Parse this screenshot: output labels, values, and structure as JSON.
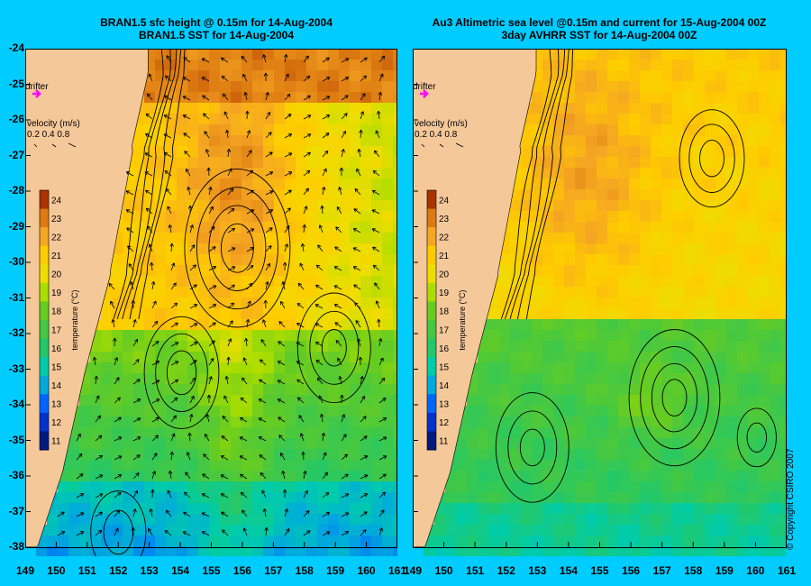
{
  "titles": {
    "left_line1": "BRAN1.5 sfc height @ 0.15m for 14-Aug-2004",
    "left_line2": "BRAN1.5 SST for 14-Aug-2004",
    "right_line1": "Au3 Altimetric sea level  @0.15m and current for 15-Aug-2004 00Z",
    "right_line2": "3day AVHRR SST for 14-Aug-2004 00Z"
  },
  "axes": {
    "lat_ticks": [
      "-24",
      "-25",
      "-26",
      "-27",
      "-28",
      "-29",
      "-30",
      "-31",
      "-32",
      "-33",
      "-34",
      "-35",
      "-36",
      "-37",
      "-38"
    ],
    "lon_ticks": [
      "149",
      "150",
      "151",
      "152",
      "153",
      "154",
      "155",
      "156",
      "157",
      "158",
      "159",
      "160",
      "161"
    ]
  },
  "legend": {
    "drifter_label": "drifter",
    "velocity_title": "velocity (m/s)",
    "velocity_values": "0.2 0.4 0.8",
    "temperature_label": "temperature (°C)",
    "temperature_ticks": [
      "24",
      "23",
      "22",
      "21",
      "20",
      "19",
      "18",
      "17",
      "16",
      "15",
      "14",
      "13",
      "12",
      "11"
    ]
  },
  "copyright": "© Copyright CSIRO 2007",
  "colors": {
    "background": "#00ccff",
    "land": "#f5c89a",
    "drifter_marker": "#ff00ff"
  },
  "map_data": {
    "lon_range": [
      149,
      161
    ],
    "lat_range": [
      -38,
      -24
    ],
    "warm_core_eddy_center_left": [
      155.8,
      -29.8
    ],
    "cold_core_eddy_center_left": [
      154.0,
      -33.3
    ],
    "warm_core_eddy_center_right": [
      157.2,
      -34.0
    ]
  }
}
